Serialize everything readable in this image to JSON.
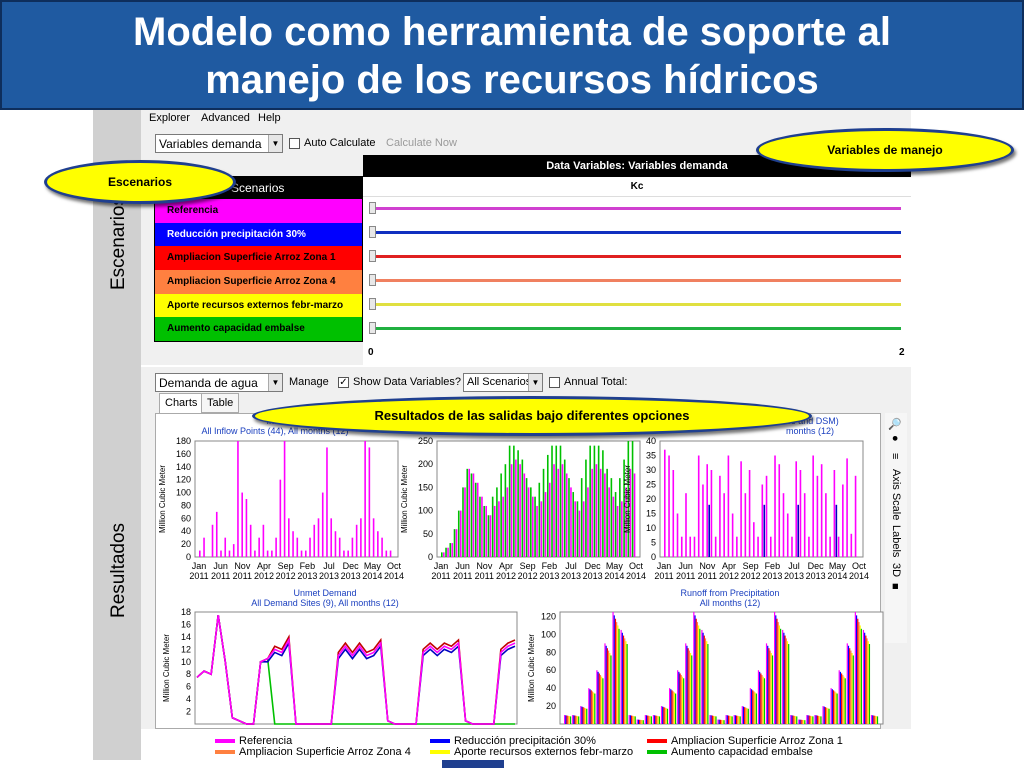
{
  "title": {
    "line1": "Modelo como herramienta de soporte al",
    "line2": "manejo de los recursos hídricos"
  },
  "side_labels": {
    "escenarios": "Escenarios",
    "resultados": "Resultados"
  },
  "menu": [
    "Explorer",
    "Advanced",
    "Help"
  ],
  "toolbar_top": {
    "variable_select": "Variables demanda",
    "auto_calculate": "Auto Calculate",
    "calculate_now": "Calculate Now"
  },
  "scenarios": {
    "header": "Scenarios",
    "items": [
      {
        "label": "Referencia",
        "color": "#ff00ff",
        "text_color": "#000000"
      },
      {
        "label": "Reducción precipitación 30%",
        "color": "#0000ff",
        "text_color": "#ffffff"
      },
      {
        "label": "Ampliacion Superficie Arroz Zona 1",
        "color": "#ff0000",
        "text_color": "#000000"
      },
      {
        "label": "Ampliacion Superficie Arroz Zona 4",
        "color": "#ff8040",
        "text_color": "#000000"
      },
      {
        "label": "Aporte recursos externos febr-marzo",
        "color": "#ffff00",
        "text_color": "#000000"
      },
      {
        "label": "Aumento capacidad embalse",
        "color": "#00c000",
        "text_color": "#000000"
      }
    ]
  },
  "data_variables": {
    "header": "Data Variables: Variables demanda",
    "column": "Kc",
    "axis_min": "0",
    "axis_max": "2",
    "line_colors": [
      "#d040d0",
      "#1030c0",
      "#e02020",
      "#f08060",
      "#e0e040",
      "#20b040"
    ]
  },
  "toolbar_bottom": {
    "result_select": "Demanda de agua",
    "manage": "Manage",
    "show_data_variables": "Show Data Variables?",
    "scenario_select": "All Scenarios",
    "annual_total": "Annual Total:"
  },
  "tabs": [
    "Charts",
    "Table"
  ],
  "right_tools": {
    "axis_scale": "Axis Scale",
    "labels": "Labels",
    "three_d": "3D"
  },
  "callouts": {
    "variables_manejo": "Variables de manejo",
    "escenarios": "Escenarios",
    "resultados": "Resultados de las salidas bajo diferentes opciones"
  },
  "chart_data": [
    {
      "type": "bar",
      "title_line2": "All Inflow Points (44),",
      "ylabel": "Million Cubic Meter",
      "ylim": [
        0,
        180
      ],
      "yticks": [
        0,
        20,
        40,
        60,
        80,
        100,
        120,
        140,
        160,
        180
      ],
      "xticks": [
        "Jan 2011",
        "Jun 2011",
        "Nov 2011",
        "Apr 2012",
        "Sep 2012",
        "Feb 2013",
        "Jul 2013",
        "Dec 2013",
        "May 2014",
        "Oct 2014"
      ],
      "series": [
        {
          "color": "#ff00ff",
          "values": [
            10,
            30,
            0,
            50,
            70,
            10,
            30,
            10,
            20,
            180,
            100,
            90,
            50,
            10,
            30,
            50,
            10,
            10,
            30,
            120,
            180,
            60,
            40,
            30,
            10,
            10,
            30,
            50,
            60,
            100,
            170,
            60,
            40,
            30,
            10,
            10,
            30,
            50,
            60,
            180,
            170,
            60,
            40,
            30,
            10,
            10
          ]
        },
        {
          "color": "#00c000",
          "values": [
            0,
            0,
            0,
            0,
            0,
            0,
            0,
            0,
            0,
            0,
            0,
            0,
            0,
            0,
            0,
            0,
            0,
            0,
            0,
            0,
            0,
            0,
            0,
            0,
            0,
            0,
            0,
            0,
            0,
            0,
            0,
            0,
            0,
            0,
            0,
            0,
            0,
            0,
            0,
            0,
            0,
            0,
            0,
            0,
            0,
            0
          ]
        }
      ]
    },
    {
      "type": "bar",
      "ylabel": "Million Cubic Meter",
      "ylim": [
        0,
        250
      ],
      "yticks": [
        0,
        50,
        100,
        150,
        200,
        250
      ],
      "xticks": [
        "Jan 2011",
        "Jun 2011",
        "Nov 2011",
        "Apr 2012",
        "Sep 2012",
        "Feb 2013",
        "Jul 2013",
        "Dec 2013",
        "May 2014",
        "Oct 2014"
      ],
      "series": [
        {
          "color": "#00c000",
          "values": [
            10,
            20,
            30,
            60,
            100,
            150,
            190,
            180,
            160,
            130,
            110,
            90,
            130,
            150,
            180,
            200,
            240,
            240,
            230,
            210,
            170,
            150,
            130,
            160,
            190,
            220,
            240,
            240,
            240,
            210,
            170,
            140,
            120,
            170,
            210,
            240,
            240,
            240,
            230,
            190,
            170,
            140,
            170,
            210,
            250,
            250
          ]
        },
        {
          "color": "#ff00ff",
          "values": [
            10,
            20,
            30,
            60,
            100,
            150,
            190,
            180,
            160,
            130,
            110,
            90,
            110,
            120,
            130,
            150,
            200,
            210,
            200,
            180,
            150,
            130,
            110,
            120,
            140,
            160,
            200,
            190,
            200,
            180,
            150,
            120,
            100,
            120,
            150,
            190,
            200,
            190,
            180,
            150,
            130,
            110,
            120,
            150,
            190,
            180
          ]
        }
      ]
    },
    {
      "type": "bar",
      "title_line2": "months (12)",
      "ylabel": "Million Cubic Meter",
      "ylim": [
        0,
        40
      ],
      "yticks": [
        0,
        5,
        10,
        15,
        20,
        25,
        30,
        35,
        40
      ],
      "xticks": [
        "Jan 2011",
        "Jun 2011",
        "Nov 2011",
        "Apr 2012",
        "Sep 2012",
        "Feb 2013",
        "Jul 2013",
        "Dec 2013",
        "May 2014",
        "Oct 2014"
      ],
      "series": [
        {
          "color": "#ff00ff",
          "values": [
            37,
            35,
            30,
            15,
            7,
            22,
            7,
            7,
            35,
            25,
            32,
            30,
            7,
            28,
            22,
            35,
            15,
            7,
            33,
            22,
            30,
            12,
            7,
            25,
            28,
            7,
            35,
            32,
            22,
            15,
            7,
            33,
            30,
            22,
            7,
            35,
            28,
            32,
            22,
            7,
            30,
            7,
            25,
            34,
            8,
            28
          ]
        },
        {
          "color": "#0000c0",
          "values": [
            0,
            0,
            0,
            0,
            0,
            0,
            0,
            0,
            0,
            0,
            18,
            0,
            0,
            0,
            0,
            0,
            0,
            0,
            0,
            0,
            0,
            0,
            0,
            18,
            0,
            0,
            0,
            0,
            0,
            0,
            0,
            18,
            0,
            0,
            0,
            0,
            0,
            0,
            0,
            0,
            18,
            0,
            0,
            0,
            0,
            0
          ]
        }
      ]
    },
    {
      "type": "line",
      "title": "Unmet Demand",
      "subtitle": "All Demand Sites (9),  All months (12)",
      "ylabel": "Million Cubic Meter",
      "ylim": [
        0,
        18
      ],
      "yticks": [
        2,
        4,
        6,
        8,
        10,
        12,
        14,
        16,
        18
      ],
      "series": [
        {
          "color": "#ff00ff",
          "values": [
            7.5,
            8.5,
            8,
            17.5,
            10,
            1,
            0.5,
            0,
            0,
            10,
            10.5,
            12,
            11.5,
            13.5,
            0,
            0,
            0,
            0,
            0,
            0,
            11,
            12.5,
            11,
            12.5,
            11,
            11.5,
            13,
            0.5,
            0,
            0,
            0,
            0,
            11.5,
            12.5,
            11.5,
            12.5,
            12,
            13,
            0.5,
            0,
            0,
            0,
            0,
            11.5,
            12.5,
            13
          ]
        },
        {
          "color": "#c00000",
          "values": [
            7.5,
            8.5,
            8,
            17.5,
            10,
            1,
            0.5,
            0,
            0,
            10,
            10.5,
            12.5,
            12,
            14,
            0,
            0,
            0,
            0,
            0,
            0,
            11.5,
            13,
            11.5,
            13,
            11.5,
            12,
            13.5,
            0.5,
            0,
            0,
            0,
            0,
            12,
            13,
            12,
            13,
            12.5,
            13.5,
            0.5,
            0,
            0,
            0,
            0,
            12,
            13,
            13.5
          ]
        },
        {
          "color": "#0000c0",
          "values": [
            7.5,
            8.5,
            8,
            17.5,
            10,
            1,
            0.5,
            0,
            0,
            10,
            10,
            11.5,
            11,
            13,
            0,
            0,
            0,
            0,
            0,
            0,
            10.5,
            12,
            10.5,
            12,
            10.5,
            11,
            12.5,
            0.5,
            0,
            0,
            0,
            0,
            11,
            12,
            11,
            12,
            11.5,
            12.5,
            0.5,
            0,
            0,
            0,
            0,
            11,
            12,
            12.5
          ]
        },
        {
          "color": "#00c000",
          "values": [
            7.5,
            8.5,
            8,
            17.5,
            10,
            1,
            0.5,
            0,
            0,
            10,
            10.5,
            0,
            0,
            0,
            0,
            0,
            0,
            0,
            0,
            0,
            0,
            0,
            0,
            0,
            0,
            0,
            0,
            0,
            0,
            0,
            0,
            0,
            0,
            0,
            0,
            0,
            0,
            0,
            0,
            0,
            0,
            0,
            0,
            0,
            0,
            0
          ]
        }
      ]
    },
    {
      "type": "bar",
      "title": "Runoff from Precipitation",
      "subtitle": "All months (12)",
      "ylabel": "Million Cubic Meter",
      "ylim": [
        0,
        125
      ],
      "yticks": [
        20,
        40,
        60,
        80,
        100,
        120
      ],
      "groups": [
        10,
        10,
        20,
        40,
        60,
        90,
        125,
        105,
        10,
        5,
        10,
        10,
        20,
        40,
        60,
        90,
        125,
        105,
        10,
        5,
        10,
        10,
        20,
        40,
        60,
        90,
        125,
        105,
        10,
        5,
        10,
        10,
        20,
        40,
        60,
        90,
        125,
        105,
        10
      ],
      "series_colors": [
        "#ff00ff",
        "#0000ff",
        "#ff0000",
        "#ff8040",
        "#ffff00",
        "#00c000"
      ]
    }
  ],
  "chart_titles": {
    "c1_line1": "Inflo",
    "c3_line1": "ase and DSM)",
    "c4_title": "Unmet Demand",
    "c4_sub": "All Demand Sites (9),  All months (12)",
    "c5_title": "Runoff from Precipitation",
    "c5_sub": "All months (12)",
    "c1_sub": "All Inflow Points (44),  All months (12)",
    "c3_sub": "months (12)"
  },
  "legend": [
    {
      "label": "Referencia",
      "color": "#ff00ff"
    },
    {
      "label": "Reducción precipitación 30%",
      "color": "#0000ff"
    },
    {
      "label": "Ampliacion Superficie Arroz Zona 1",
      "color": "#ff0000"
    },
    {
      "label": "Ampliacion Superficie Arroz Zona 4",
      "color": "#ff8040"
    },
    {
      "label": "Aporte recursos externos febr-marzo",
      "color": "#ffff00"
    },
    {
      "label": "Aumento capacidad embalse",
      "color": "#00c000"
    }
  ]
}
